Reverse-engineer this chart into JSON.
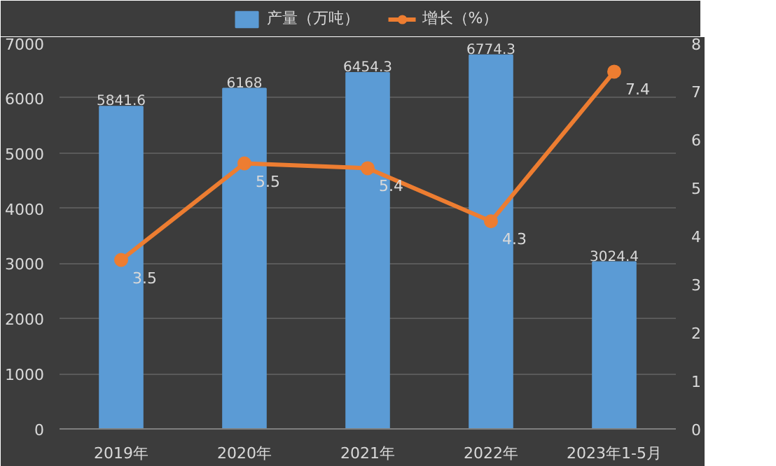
{
  "chart_data": {
    "type": "bar",
    "categories": [
      "2019年",
      "2020年",
      "2021年",
      "2022年",
      "2023年1-5月"
    ],
    "series": [
      {
        "name": "产量（万吨）",
        "color": "#5b9bd5",
        "values": [
          5841.6,
          6168,
          6454.3,
          6774.3,
          3024.4
        ]
      },
      {
        "name": "增长（%）",
        "type": "line",
        "axis": "y2",
        "color": "#ed7d31",
        "marker": "circle",
        "values": [
          3.5,
          5.5,
          5.4,
          4.3,
          7.4
        ]
      }
    ],
    "ylim": [
      0,
      7000
    ],
    "yticks": [
      0,
      1000,
      2000,
      3000,
      4000,
      5000,
      6000,
      7000
    ],
    "y2lim": [
      0,
      8
    ],
    "y2ticks": [
      0,
      1,
      2,
      3,
      4,
      5,
      6,
      7,
      8
    ],
    "grid": "y",
    "legend": "top",
    "data_labels": true
  }
}
